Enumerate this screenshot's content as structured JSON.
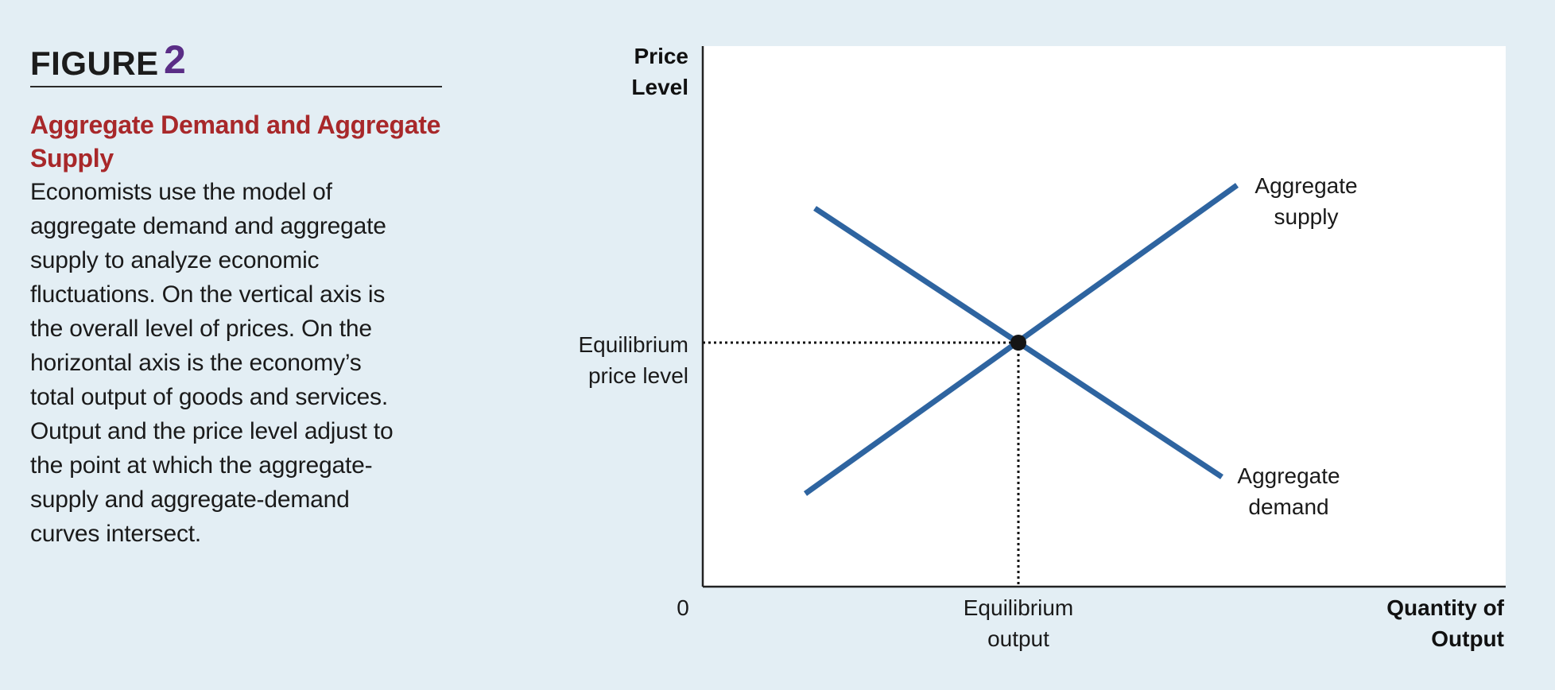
{
  "figure": {
    "label": "FIGURE",
    "number": "2",
    "title_lines": [
      "Aggregate Demand and Aggregate",
      "Supply"
    ],
    "body_lines": [
      "Economists use the model of",
      "aggregate demand and aggregate",
      "supply to analyze economic",
      "fluctuations. On the vertical axis is",
      "the overall level of prices. On the",
      "horizontal axis is the economy’s",
      "total output of goods and services.",
      "Output and the price level adjust to",
      "the point at which the aggregate-",
      "supply and aggregate-demand",
      "curves intersect."
    ]
  },
  "diagram": {
    "y_axis_label": [
      "Price",
      "Level"
    ],
    "x_axis_label": [
      "Quantity of",
      "Output"
    ],
    "origin_label": "0",
    "equilibrium_price_label": [
      "Equilibrium",
      "price level"
    ],
    "equilibrium_output_label": [
      "Equilibrium",
      "output"
    ],
    "supply_label": [
      "Aggregate",
      "supply"
    ],
    "demand_label": [
      "Aggregate",
      "demand"
    ],
    "curve_color": "#2e64a0",
    "plot_background": "#ffffff",
    "page_background": "#e3eef4"
  }
}
